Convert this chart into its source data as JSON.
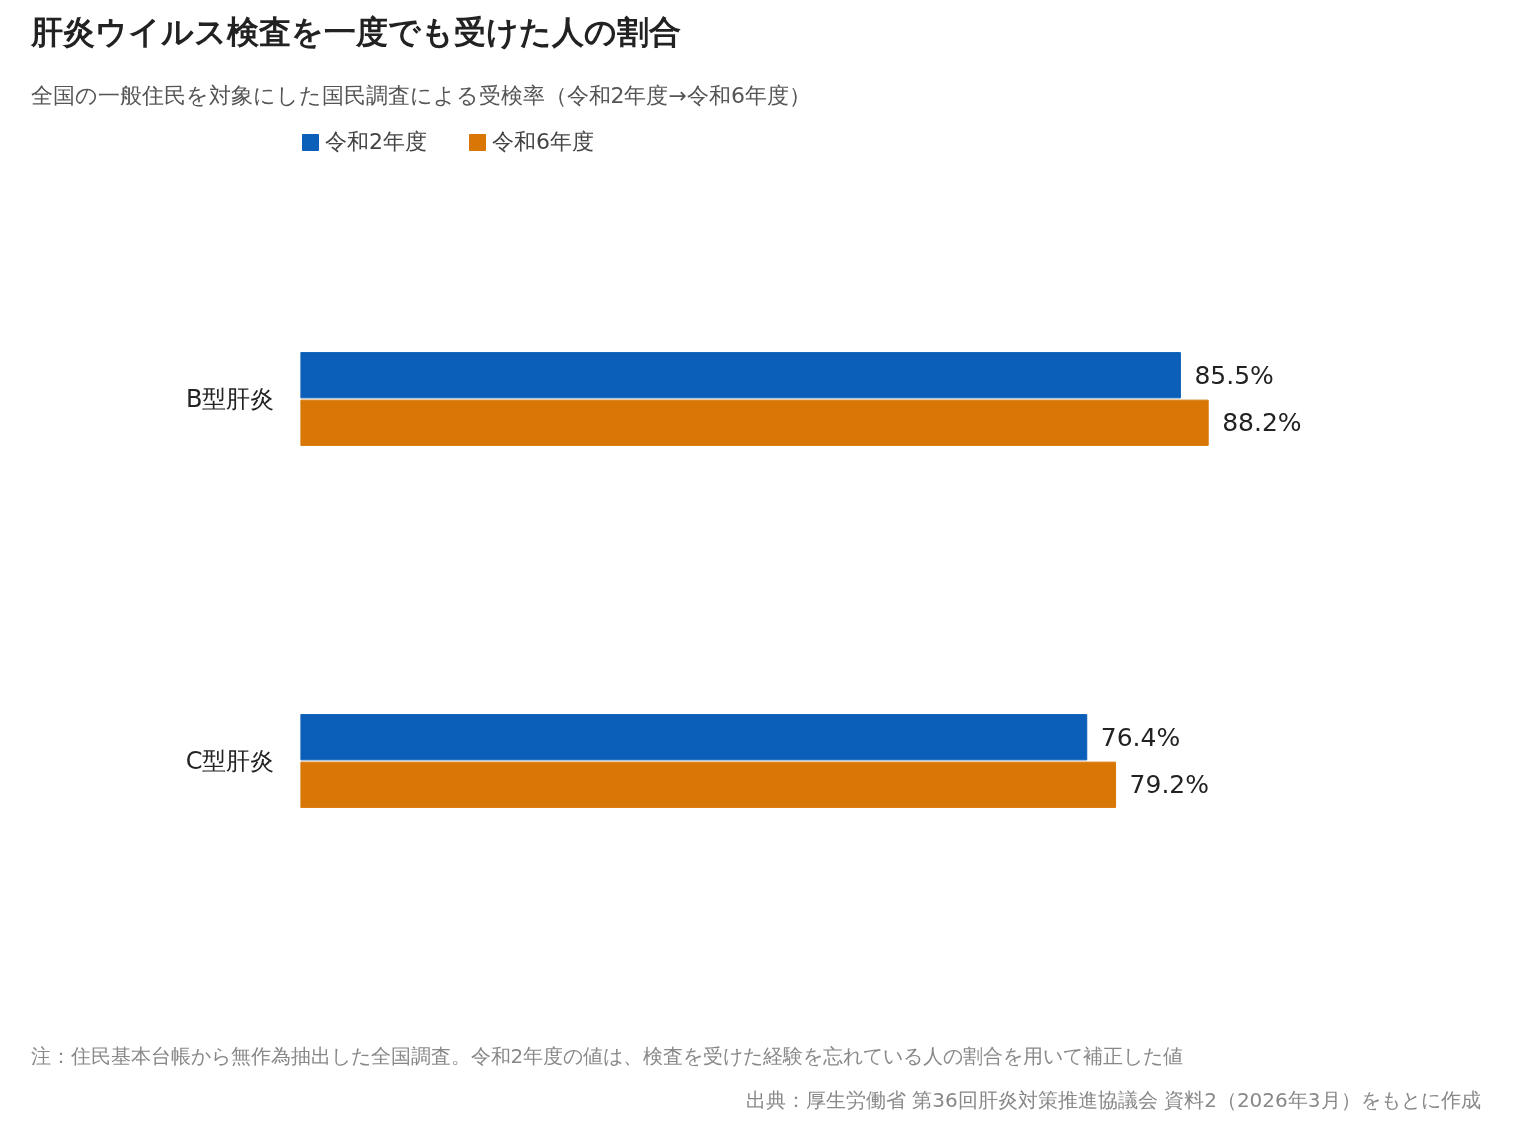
{
  "chart_data": {
    "type": "bar",
    "orientation": "horizontal",
    "title": "肝炎ウイルス検査を一度でも受けた人の割合",
    "subtitle": "全国の一般住民を対象にした国民調査による受検率（令和2年度→令和6年度）",
    "categories": [
      "B型肝炎",
      "C型肝炎"
    ],
    "series": [
      {
        "name": "令和2年度",
        "color": "#0b5fb8",
        "values": [
          85.5,
          76.4
        ],
        "value_labels": [
          "85.5%",
          "76.4%"
        ]
      },
      {
        "name": "令和6年度",
        "color": "#d97706",
        "values": [
          88.2,
          79.2
        ],
        "value_labels": [
          "88.2%",
          "79.2%"
        ]
      }
    ],
    "legend": "top left",
    "grid": false,
    "annotations": [
      "注：住民基本台帳から無作為抽出した全国調査。令和2年度の値は、検査を受けた経験を忘れている人の割合を用いて補正した値",
      "出典：厚生労働省 第36回肝炎対策推進協議会 資料2（2026年3月）をもとに作成"
    ]
  }
}
